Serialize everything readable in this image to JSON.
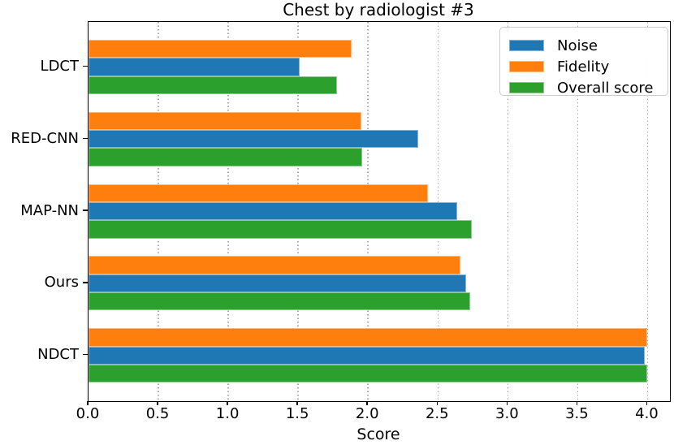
{
  "chart_data": {
    "type": "bar",
    "orientation": "horizontal",
    "title": "Chest by radiologist #3",
    "xlabel": "Score",
    "ylabel": "",
    "categories": [
      "LDCT",
      "RED-CNN",
      "MAP-NN",
      "Ours",
      "NDCT"
    ],
    "series": [
      {
        "name": "Noise",
        "color": "#1f77b4",
        "values": [
          1.51,
          2.36,
          2.64,
          2.7,
          3.98
        ]
      },
      {
        "name": "Fidelity",
        "color": "#ff7f0e",
        "values": [
          1.88,
          1.95,
          2.43,
          2.66,
          4.0
        ]
      },
      {
        "name": "Overall score",
        "color": "#2ca02c",
        "values": [
          1.78,
          1.96,
          2.74,
          2.73,
          4.0
        ]
      }
    ],
    "series_order_top_to_bottom": [
      "Fidelity",
      "Noise",
      "Overall score"
    ],
    "x_ticks": [
      "0.0",
      "0.5",
      "1.0",
      "1.5",
      "2.0",
      "2.5",
      "3.0",
      "3.5",
      "4.0"
    ],
    "x_tick_values": [
      0,
      0.5,
      1.0,
      1.5,
      2.0,
      2.5,
      3.0,
      3.5,
      4.0
    ],
    "xlim": [
      0,
      4.16
    ],
    "grid": "vertical-dotted",
    "grid_color": "#ababab",
    "spine_color": "#000000",
    "legend": {
      "position": "upper-right",
      "entries": [
        "Noise",
        "Fidelity",
        "Overall score"
      ]
    }
  }
}
